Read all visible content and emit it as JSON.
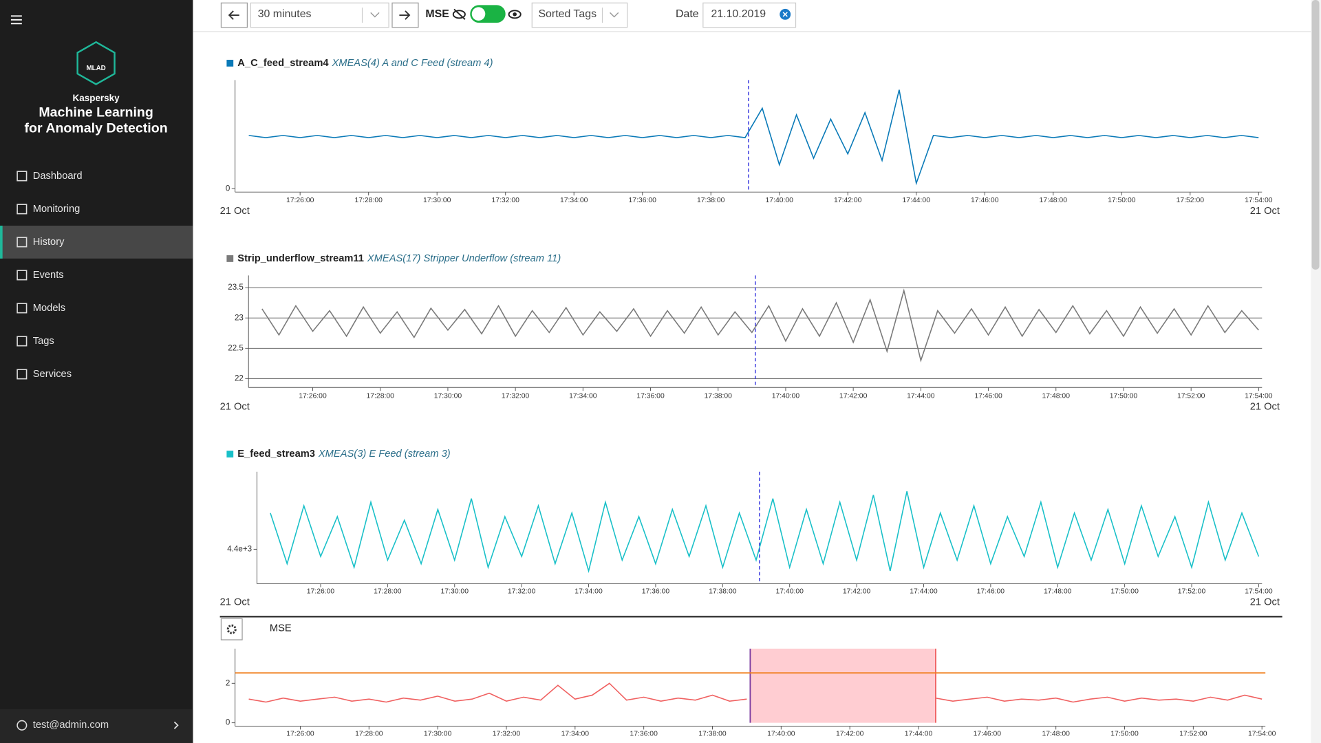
{
  "sidebar": {
    "brand": "MLAD",
    "vendor": "Kaspersky",
    "product": [
      "Machine Learning",
      "for Anomaly Detection"
    ],
    "menu": [
      "Dashboard",
      "Monitoring",
      "History",
      "Events",
      "Models",
      "Tags",
      "Services"
    ],
    "active": 2,
    "user": "test@admin.com"
  },
  "toolbar": {
    "range": "30 minutes",
    "toggle_label": "MSE",
    "toggle_on": true,
    "sort": "Sorted Tags",
    "date_label": "Date",
    "date": "21.10.2019"
  },
  "timeline": {
    "xlim": [
      1044.1,
      1074.1
    ],
    "event_x": 1059.1,
    "date_label": "21 Oct",
    "xticks": [
      {
        "value": 1046,
        "label": "17:26:00"
      },
      {
        "value": 1048,
        "label": "17:28:00"
      },
      {
        "value": 1050,
        "label": "17:30:00"
      },
      {
        "value": 1052,
        "label": "17:32:00"
      },
      {
        "value": 1054,
        "label": "17:34:00"
      },
      {
        "value": 1056,
        "label": "17:36:00"
      },
      {
        "value": 1058,
        "label": "17:38:00"
      },
      {
        "value": 1060,
        "label": "17:40:00"
      },
      {
        "value": 1062,
        "label": "17:42:00"
      },
      {
        "value": 1064,
        "label": "17:44:00"
      },
      {
        "value": 1066,
        "label": "17:46:00"
      },
      {
        "value": 1068,
        "label": "17:48:00"
      },
      {
        "value": 1070,
        "label": "17:50:00"
      },
      {
        "value": 1072,
        "label": "17:52:00"
      },
      {
        "value": 1074,
        "label": "17:54:00"
      }
    ],
    "x": [
      1044.5,
      1045,
      1045.5,
      1046,
      1046.5,
      1047,
      1047.5,
      1048,
      1048.5,
      1049,
      1049.5,
      1050,
      1050.5,
      1051,
      1051.5,
      1052,
      1052.5,
      1053,
      1053.5,
      1054,
      1054.5,
      1055,
      1055.5,
      1056,
      1056.5,
      1057,
      1057.5,
      1058,
      1058.5,
      1059,
      1059.5,
      1060,
      1060.5,
      1061,
      1061.5,
      1062,
      1062.5,
      1063,
      1063.5,
      1064,
      1064.5,
      1065,
      1065.5,
      1066,
      1066.5,
      1067,
      1067.5,
      1068,
      1068.5,
      1069,
      1069.5,
      1070,
      1070.5,
      1071,
      1071.5,
      1072,
      1072.5,
      1073,
      1073.5,
      1074
    ]
  },
  "charts": [
    {
      "type": "line",
      "name": "A_C_feed_stream4",
      "description": "XMEAS(4) A and C Feed (stream 4)",
      "color": "#0a7ab8",
      "grid": false,
      "ylim": [
        0,
        1
      ],
      "yticks": [
        0
      ],
      "values": [
        0.49,
        0.47,
        0.49,
        0.47,
        0.49,
        0.47,
        0.49,
        0.47,
        0.49,
        0.47,
        0.49,
        0.47,
        0.49,
        0.47,
        0.49,
        0.47,
        0.49,
        0.47,
        0.49,
        0.47,
        0.49,
        0.47,
        0.49,
        0.47,
        0.49,
        0.47,
        0.49,
        0.47,
        0.49,
        0.47,
        0.74,
        0.22,
        0.68,
        0.28,
        0.64,
        0.32,
        0.7,
        0.26,
        0.91,
        0.05,
        0.49,
        0.47,
        0.49,
        0.47,
        0.49,
        0.47,
        0.49,
        0.47,
        0.49,
        0.47,
        0.49,
        0.47,
        0.49,
        0.47,
        0.49,
        0.47,
        0.49,
        0.47,
        0.49,
        0.47
      ]
    },
    {
      "type": "line",
      "name": "Strip_underflow_stream11",
      "description": "XMEAS(17) Stripper Underflow (stream 11)",
      "color": "#7a7a7a",
      "grid": true,
      "ylim": [
        21.91,
        23.7
      ],
      "yticks": [
        22,
        22.5,
        23,
        23.5
      ],
      "values": [
        23.15,
        22.72,
        23.2,
        22.78,
        23.12,
        22.7,
        23.18,
        22.75,
        23.1,
        22.68,
        23.16,
        22.8,
        23.14,
        22.74,
        23.2,
        22.7,
        23.12,
        22.76,
        23.17,
        22.72,
        23.1,
        22.78,
        23.15,
        22.7,
        23.12,
        22.75,
        23.18,
        22.72,
        23.1,
        22.76,
        23.2,
        22.62,
        23.15,
        22.7,
        23.25,
        22.6,
        23.3,
        22.45,
        23.45,
        22.3,
        23.12,
        22.75,
        23.15,
        22.72,
        23.18,
        22.7,
        23.14,
        22.76,
        23.2,
        22.74,
        23.12,
        22.7,
        23.18,
        22.75,
        23.15,
        22.72,
        23.2,
        22.76,
        23.12,
        22.8
      ]
    },
    {
      "type": "line",
      "name": "E_feed_stream3",
      "description": "XMEAS(3) E Feed (stream 3)",
      "color": "#19c0c8",
      "grid": false,
      "ylim": [
        4391.4,
        4421.4
      ],
      "yticks": [
        {
          "value": 4400,
          "label": "4.4e+3"
        }
      ],
      "values": [
        4410,
        4396,
        4412,
        4398,
        4409,
        4395,
        4413,
        4397,
        4408,
        4396,
        4411,
        4397,
        4414,
        4395,
        4409,
        4398,
        4412,
        4396,
        4410,
        4394,
        4413,
        4397,
        4409,
        4396,
        4411,
        4398,
        4412,
        4395,
        4410,
        4397,
        4414,
        4395,
        4411,
        4396,
        4413,
        4397,
        4415,
        4394,
        4416,
        4395,
        4410,
        4397,
        4412,
        4396,
        4409,
        4398,
        4413,
        4395,
        4410,
        4397,
        4411,
        4396,
        4412,
        4398,
        4409,
        4395,
        4413,
        4397,
        4410,
        4398
      ]
    }
  ],
  "mse": {
    "type": "line",
    "name": "MSE",
    "color": "#f06060",
    "threshold": 2.53,
    "threshold_color": "#f08020",
    "anomaly": [
      1059.1,
      1064.5
    ],
    "anomaly_color": "#ffcdd2",
    "ylim": [
      0,
      3.76
    ],
    "yticks": [
      0,
      2
    ],
    "values": [
      1.2,
      1.05,
      1.25,
      1.1,
      1.2,
      1.3,
      1.1,
      1.2,
      1.05,
      1.25,
      1.15,
      1.35,
      1.1,
      1.2,
      1.5,
      1.1,
      1.3,
      1.15,
      1.9,
      1.2,
      1.4,
      2.0,
      1.15,
      1.3,
      1.1,
      1.25,
      1.15,
      1.4,
      1.1,
      1.2,
      null,
      null,
      null,
      null,
      null,
      null,
      null,
      null,
      null,
      null,
      1.25,
      1.1,
      1.2,
      1.3,
      1.1,
      1.2,
      1.15,
      1.25,
      1.05,
      1.2,
      1.3,
      1.1,
      1.25,
      1.15,
      1.2,
      1.1,
      1.3,
      1.15,
      1.4,
      1.2
    ]
  }
}
